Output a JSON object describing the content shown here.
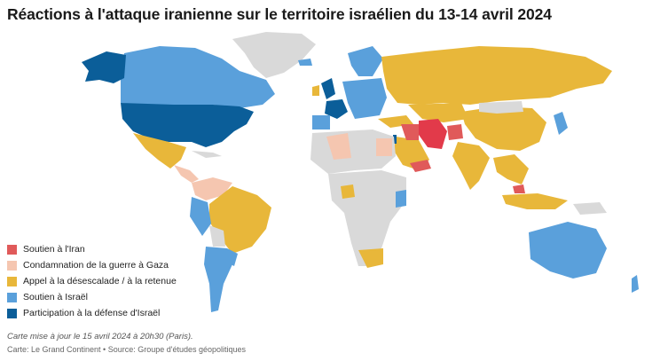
{
  "title": "Réactions à l'attaque iranienne sur le territoire israélien du 13-14 avril 2024",
  "legend": [
    {
      "label": "Soutien à l'Iran",
      "color": "#e05a5a"
    },
    {
      "label": "Condamnation de la guerre à Gaza",
      "color": "#f5c6b0"
    },
    {
      "label": "Appel à la désescalade / à la retenue",
      "color": "#e8b73a"
    },
    {
      "label": "Soutien à Israël",
      "color": "#5aa0db"
    },
    {
      "label": "Participation à la défense d'Israël",
      "color": "#0b5e99"
    }
  ],
  "colors": {
    "no_data": "#d9d9d9",
    "iran": "#e23a4a"
  },
  "note": "Carte mise à jour le 15 avril 2024 à 20h30 (Paris).",
  "credit": "Carte: Le Grand Continent • Source: Groupe d'études géopolitiques"
}
